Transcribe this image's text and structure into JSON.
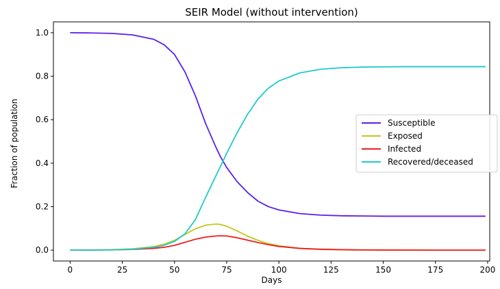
{
  "chart_data": {
    "type": "line",
    "title": "SEIR Model (without intervention)",
    "xlabel": "Days",
    "ylabel": "Fraction of population",
    "xlim": [
      -8,
      201
    ],
    "ylim": [
      -0.05,
      1.05
    ],
    "xticks": [
      0,
      25,
      50,
      75,
      100,
      125,
      150,
      175,
      200
    ],
    "yticks": [
      0.0,
      0.2,
      0.4,
      0.6,
      0.8,
      1.0
    ],
    "grid": false,
    "legend_position": "center-right",
    "x": [
      0,
      10,
      20,
      30,
      40,
      45,
      50,
      55,
      60,
      65,
      70,
      72,
      75,
      80,
      85,
      90,
      95,
      100,
      110,
      120,
      130,
      140,
      150,
      160,
      175,
      199
    ],
    "series": [
      {
        "name": "Susceptible",
        "color": "#5a1de8",
        "values": [
          1.0,
          0.999,
          0.997,
          0.99,
          0.97,
          0.945,
          0.9,
          0.82,
          0.71,
          0.58,
          0.47,
          0.43,
          0.38,
          0.315,
          0.265,
          0.225,
          0.2,
          0.185,
          0.168,
          0.161,
          0.158,
          0.157,
          0.156,
          0.156,
          0.156,
          0.156
        ]
      },
      {
        "name": "Exposed",
        "color": "#c2c81a",
        "values": [
          0.0,
          0.0005,
          0.002,
          0.006,
          0.016,
          0.027,
          0.045,
          0.072,
          0.098,
          0.115,
          0.12,
          0.118,
          0.11,
          0.088,
          0.064,
          0.045,
          0.03,
          0.02,
          0.008,
          0.003,
          0.0015,
          0.0005,
          0.0003,
          0.0001,
          0.0,
          0.0
        ]
      },
      {
        "name": "Infected",
        "color": "#ee1c1c",
        "values": [
          0.0,
          0.0002,
          0.001,
          0.003,
          0.008,
          0.013,
          0.022,
          0.036,
          0.05,
          0.06,
          0.065,
          0.066,
          0.065,
          0.057,
          0.046,
          0.035,
          0.025,
          0.017,
          0.008,
          0.004,
          0.002,
          0.001,
          0.0005,
          0.0002,
          0.0,
          0.0
        ]
      },
      {
        "name": "Recovered/deceased",
        "color": "#1ccaca",
        "values": [
          0.0,
          0.0003,
          0.001,
          0.004,
          0.013,
          0.022,
          0.04,
          0.075,
          0.14,
          0.245,
          0.345,
          0.385,
          0.445,
          0.54,
          0.625,
          0.695,
          0.745,
          0.778,
          0.815,
          0.832,
          0.839,
          0.842,
          0.843,
          0.844,
          0.844,
          0.844
        ]
      }
    ]
  }
}
